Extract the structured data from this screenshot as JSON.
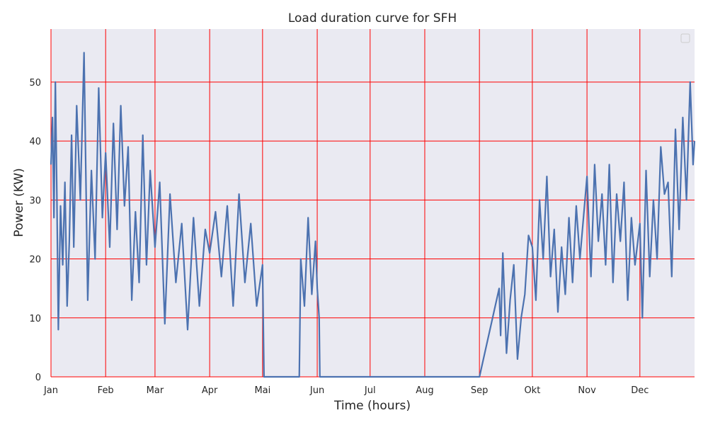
{
  "chart_data": {
    "type": "line",
    "title": "Load duration curve for SFH",
    "xlabel": "Time (hours)",
    "ylabel": "Power (KW)",
    "x_unit": "hour of year",
    "xlim": [
      0,
      8760
    ],
    "ylim": [
      0,
      59
    ],
    "x_ticks": [
      {
        "label": "Jan",
        "value": 0
      },
      {
        "label": "Feb",
        "value": 744
      },
      {
        "label": "Mar",
        "value": 1416
      },
      {
        "label": "Apr",
        "value": 2160
      },
      {
        "label": "Mai",
        "value": 2880
      },
      {
        "label": "Jun",
        "value": 3624
      },
      {
        "label": "Jul",
        "value": 4344
      },
      {
        "label": "Aug",
        "value": 5088
      },
      {
        "label": "Sep",
        "value": 5832
      },
      {
        "label": "Okt",
        "value": 6552
      },
      {
        "label": "Nov",
        "value": 7296
      },
      {
        "label": "Dec",
        "value": 8016
      }
    ],
    "y_ticks": [
      0,
      10,
      20,
      30,
      40,
      50
    ],
    "grid": true,
    "grid_color": "#ff0000",
    "legend": "top-right (empty)",
    "background_color": "#eaeaf2",
    "series": [
      {
        "color": "#4c72b0",
        "x": [
          0,
          20,
          40,
          60,
          80,
          100,
          130,
          160,
          190,
          220,
          250,
          280,
          310,
          350,
          400,
          450,
          500,
          550,
          600,
          650,
          700,
          744,
          800,
          850,
          900,
          950,
          1000,
          1050,
          1100,
          1150,
          1200,
          1250,
          1300,
          1350,
          1416,
          1480,
          1550,
          1620,
          1700,
          1780,
          1860,
          1940,
          2020,
          2100,
          2160,
          2240,
          2320,
          2400,
          2480,
          2560,
          2640,
          2720,
          2800,
          2880,
          2900,
          3000,
          3100,
          3200,
          3300,
          3380,
          3400,
          3450,
          3500,
          3550,
          3600,
          3624,
          3650,
          3660,
          3700,
          4000,
          4344,
          5088,
          5832,
          6100,
          6120,
          6150,
          6200,
          6250,
          6300,
          6350,
          6400,
          6450,
          6500,
          6552,
          6600,
          6650,
          6700,
          6750,
          6800,
          6850,
          6900,
          6950,
          7000,
          7050,
          7100,
          7150,
          7200,
          7296,
          7350,
          7400,
          7450,
          7500,
          7550,
          7600,
          7650,
          7700,
          7750,
          7800,
          7850,
          7900,
          7950,
          8016,
          8050,
          8100,
          8150,
          8200,
          8250,
          8300,
          8350,
          8400,
          8450,
          8500,
          8550,
          8600,
          8650,
          8700,
          8740,
          8760
        ],
        "y": [
          36,
          44,
          27,
          50,
          31,
          8,
          29,
          19,
          33,
          12,
          23,
          41,
          22,
          46,
          30,
          55,
          13,
          35,
          20,
          49,
          27,
          38,
          22,
          43,
          25,
          46,
          29,
          39,
          13,
          28,
          16,
          41,
          19,
          35,
          22,
          33,
          9,
          31,
          16,
          26,
          8,
          27,
          12,
          25,
          21,
          28,
          17,
          29,
          12,
          31,
          16,
          26,
          12,
          19,
          0,
          0,
          0,
          0,
          0,
          0,
          20,
          12,
          27,
          14,
          23,
          15,
          10,
          0,
          0,
          0,
          0,
          0,
          0,
          15,
          7,
          21,
          4,
          13,
          19,
          3,
          10,
          14,
          24,
          22,
          13,
          30,
          20,
          34,
          17,
          25,
          11,
          22,
          14,
          27,
          16,
          29,
          20,
          34,
          17,
          36,
          23,
          31,
          19,
          36,
          16,
          31,
          23,
          33,
          13,
          27,
          19,
          26,
          10,
          35,
          17,
          30,
          20,
          39,
          31,
          33,
          17,
          42,
          25,
          44,
          30,
          50,
          36,
          40
        ]
      }
    ]
  }
}
